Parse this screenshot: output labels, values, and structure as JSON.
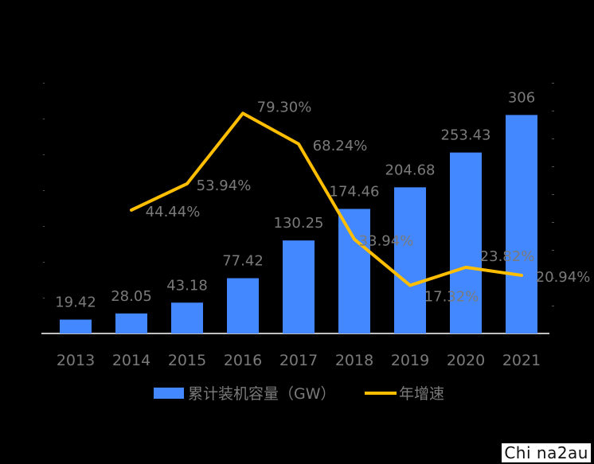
{
  "chart_data": {
    "type": "bar",
    "categories": [
      "2013",
      "2014",
      "2015",
      "2016",
      "2017",
      "2018",
      "2019",
      "2020",
      "2021"
    ],
    "series": [
      {
        "name": "累计装机容量（GW）",
        "type": "bar",
        "axis": "left",
        "values": [
          19.42,
          28.05,
          43.18,
          77.42,
          130.25,
          174.46,
          204.68,
          253.43,
          306
        ],
        "labels": [
          "19.42",
          "28.05",
          "43.18",
          "77.42",
          "130.25",
          "174.46",
          "204.68",
          "253.43",
          "306"
        ]
      },
      {
        "name": "年增速",
        "type": "line",
        "axis": "right",
        "values": [
          null,
          44.44,
          53.94,
          79.3,
          68.24,
          33.94,
          17.32,
          23.82,
          20.94
        ],
        "labels": [
          "",
          "44.44%",
          "53.94%",
          "79.30%",
          "68.24%",
          "33.94%",
          "17.32%",
          "23.82%",
          "20.94%"
        ]
      }
    ],
    "ylim": [
      0,
      350
    ],
    "y2lim": [
      0,
      90
    ],
    "legend_position": "bottom",
    "grid": false
  },
  "colors": {
    "bar": "#4488ff",
    "line": "#ffbf00",
    "text": "#7a7a7a",
    "axis": "#ffffff",
    "background": "#000000"
  },
  "watermark": "Chi na2au"
}
